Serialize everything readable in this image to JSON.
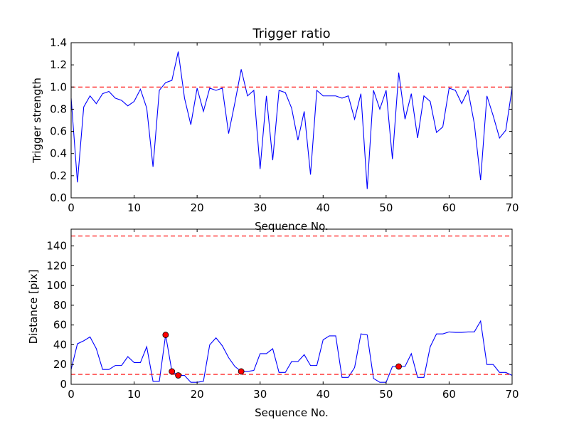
{
  "chart_data": [
    {
      "type": "line",
      "title": "Trigger ratio",
      "xlabel": "Sequence No.",
      "ylabel": "Trigger strength",
      "xlim": [
        0,
        70
      ],
      "ylim": [
        0,
        1.4
      ],
      "xticks": [
        0,
        10,
        20,
        30,
        40,
        50,
        60,
        70
      ],
      "yticks": [
        0.0,
        0.2,
        0.4,
        0.6,
        0.8,
        1.0,
        1.2,
        1.4
      ],
      "ytick_labels": [
        "0.0",
        "0.2",
        "0.4",
        "0.6",
        "0.8",
        "1.0",
        "1.2",
        "1.4"
      ],
      "grid": false,
      "line_color": "#0000ff",
      "threshold_color": "#ff0000",
      "series": [
        {
          "x": [
            0,
            1,
            2,
            3,
            4,
            5,
            6,
            7,
            8,
            9,
            10,
            11,
            12,
            13,
            14,
            15,
            16,
            17,
            18,
            19,
            20,
            21,
            22,
            23,
            24,
            25,
            26,
            27,
            28,
            29,
            30,
            31,
            32,
            33,
            34,
            35,
            36,
            37,
            38,
            39,
            40,
            41,
            42,
            43,
            44,
            45,
            46,
            47,
            48,
            49,
            50,
            51,
            52,
            53,
            54,
            55,
            56,
            57,
            58,
            59,
            60,
            61,
            62,
            63,
            64,
            65,
            66,
            67,
            68,
            69,
            70
          ],
          "y": [
            0.9,
            0.14,
            0.82,
            0.92,
            0.85,
            0.94,
            0.96,
            0.9,
            0.88,
            0.83,
            0.87,
            0.98,
            0.81,
            0.28,
            0.97,
            1.04,
            1.06,
            1.32,
            0.9,
            0.66,
            0.99,
            0.78,
            0.99,
            0.97,
            0.99,
            0.58,
            0.86,
            1.16,
            0.92,
            0.97,
            0.26,
            0.92,
            0.34,
            0.97,
            0.95,
            0.81,
            0.52,
            0.78,
            0.21,
            0.97,
            0.92,
            0.92,
            0.92,
            0.9,
            0.92,
            0.71,
            0.94,
            0.08,
            0.97,
            0.8,
            0.97,
            0.35,
            1.13,
            0.71,
            0.94,
            0.54,
            0.92,
            0.87,
            0.59,
            0.64,
            0.99,
            0.97,
            0.85,
            0.97,
            0.67,
            0.16,
            0.92,
            0.74,
            0.54,
            0.61,
            0.99
          ]
        }
      ],
      "threshold_lines": [
        1.0
      ]
    },
    {
      "type": "line",
      "title": "",
      "xlabel": "Sequence No.",
      "ylabel": "Distance [pix]",
      "xlim": [
        0,
        70
      ],
      "ylim": [
        0,
        157
      ],
      "xticks": [
        0,
        10,
        20,
        30,
        40,
        50,
        60,
        70
      ],
      "yticks": [
        0,
        20,
        40,
        60,
        80,
        100,
        120,
        140
      ],
      "ytick_labels": [
        "0",
        "20",
        "40",
        "60",
        "80",
        "100",
        "120",
        "140"
      ],
      "grid": false,
      "line_color": "#0000ff",
      "threshold_color": "#ff0000",
      "marker_color": "#ff0000",
      "series": [
        {
          "x": [
            0,
            1,
            2,
            3,
            4,
            5,
            6,
            7,
            8,
            9,
            10,
            11,
            12,
            13,
            14,
            15,
            16,
            17,
            18,
            19,
            20,
            21,
            22,
            23,
            24,
            25,
            26,
            27,
            28,
            29,
            30,
            31,
            32,
            33,
            34,
            35,
            36,
            37,
            38,
            39,
            40,
            41,
            42,
            43,
            44,
            45,
            46,
            47,
            48,
            49,
            50,
            51,
            52,
            53,
            54,
            55,
            56,
            57,
            58,
            59,
            60,
            61,
            62,
            63,
            64,
            65,
            66,
            67,
            68,
            69,
            70
          ],
          "y": [
            15,
            41,
            44,
            48,
            36,
            15,
            15,
            19,
            19,
            28,
            22,
            22,
            38,
            3,
            3,
            50,
            13,
            9,
            9,
            2,
            2,
            3,
            40,
            47,
            39,
            27,
            18,
            13,
            13,
            14,
            31,
            31,
            36,
            12,
            12,
            23,
            23,
            30,
            19,
            19,
            45,
            49,
            49,
            7,
            7,
            17,
            51,
            50,
            6,
            2,
            2,
            18,
            18,
            18,
            31,
            7,
            7,
            38,
            51,
            51,
            53,
            52.5,
            52.5,
            53,
            53,
            64,
            20,
            20,
            12,
            12,
            9
          ]
        }
      ],
      "markers": {
        "x": [
          15,
          16,
          17,
          27,
          52
        ],
        "y": [
          50,
          13,
          9,
          13,
          18
        ]
      },
      "threshold_lines": [
        10,
        150
      ]
    }
  ]
}
